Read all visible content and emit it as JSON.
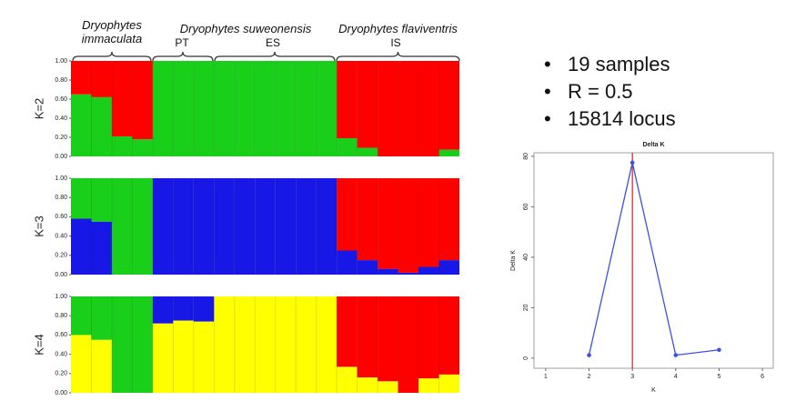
{
  "bullets": [
    "19 samples",
    "R = 0.5",
    "15814 locus"
  ],
  "labels": {
    "species": [
      "Dryophytes immaculata",
      "Dryophytes suweonensis",
      "Dryophytes flaviventris"
    ],
    "populations": [
      "PT",
      "ES",
      "IS"
    ]
  },
  "chart_data": [
    {
      "type": "bar",
      "stacked": true,
      "ylabel": "K=2",
      "categories": [
        null,
        null,
        null,
        null,
        null,
        null,
        null,
        null,
        null,
        null,
        null,
        null,
        null,
        null,
        null,
        null,
        null,
        null,
        null
      ],
      "series": [
        {
          "color": "#19cf19",
          "values": [
            0.65,
            0.62,
            0.21,
            0.18,
            1,
            1,
            1,
            1,
            1,
            1,
            1,
            1,
            1,
            0.19,
            0.09,
            0,
            0,
            0,
            0.07
          ]
        },
        {
          "color": "#ff0000",
          "values": [
            0.35,
            0.38,
            0.79,
            0.82,
            0,
            0,
            0,
            0,
            0,
            0,
            0,
            0,
            0,
            0.81,
            0.91,
            1,
            1,
            1,
            0.93
          ]
        }
      ],
      "ylim": [
        0,
        1
      ],
      "yticks": [
        {
          "value": 0,
          "label": "0.00"
        },
        {
          "value": 0.2,
          "label": "0.20"
        },
        {
          "value": 0.4,
          "label": "0.40"
        },
        {
          "value": 0.6,
          "label": "0.60"
        },
        {
          "value": 0.8,
          "label": "0.80"
        },
        {
          "value": 1,
          "label": "1.00"
        }
      ]
    },
    {
      "type": "bar",
      "stacked": true,
      "ylabel": "K=3",
      "categories": [
        null,
        null,
        null,
        null,
        null,
        null,
        null,
        null,
        null,
        null,
        null,
        null,
        null,
        null,
        null,
        null,
        null,
        null,
        null
      ],
      "series": [
        {
          "color": "#1717e6",
          "values": [
            0.58,
            0.55,
            0,
            0,
            1,
            1,
            1,
            1,
            1,
            1,
            1,
            1,
            1,
            0.25,
            0.15,
            0.06,
            0.02,
            0.08,
            0.15
          ]
        },
        {
          "color": "#19cf19",
          "values": [
            0.42,
            0.45,
            1,
            1,
            0,
            0,
            0,
            0,
            0,
            0,
            0,
            0,
            0,
            0,
            0,
            0,
            0,
            0,
            0
          ]
        },
        {
          "color": "#ff0000",
          "values": [
            0,
            0,
            0,
            0,
            0,
            0,
            0,
            0,
            0,
            0,
            0,
            0,
            0,
            0.75,
            0.85,
            0.94,
            0.98,
            0.92,
            0.85
          ]
        }
      ],
      "ylim": [
        0,
        1
      ],
      "yticks": [
        {
          "value": 0,
          "label": "0.00"
        },
        {
          "value": 0.2,
          "label": "0.20"
        },
        {
          "value": 0.4,
          "label": "0.40"
        },
        {
          "value": 0.6,
          "label": "0.60"
        },
        {
          "value": 0.8,
          "label": "0.80"
        },
        {
          "value": 1,
          "label": "1.00"
        }
      ]
    },
    {
      "type": "bar",
      "stacked": true,
      "ylabel": "K=4",
      "categories": [
        null,
        null,
        null,
        null,
        null,
        null,
        null,
        null,
        null,
        null,
        null,
        null,
        null,
        null,
        null,
        null,
        null,
        null,
        null
      ],
      "series": [
        {
          "color": "#ffff00",
          "values": [
            0.6,
            0.55,
            0,
            0,
            0.72,
            0.75,
            0.74,
            1,
            1,
            1,
            1,
            1,
            1,
            0.27,
            0.16,
            0.12,
            0,
            0.15,
            0.19
          ]
        },
        {
          "color": "#19cf19",
          "values": [
            0.4,
            0.45,
            1,
            1,
            0,
            0,
            0,
            0,
            0,
            0,
            0,
            0,
            0,
            0,
            0,
            0,
            0,
            0,
            0
          ]
        },
        {
          "color": "#1717e6",
          "values": [
            0,
            0,
            0,
            0,
            0.28,
            0.25,
            0.26,
            0,
            0,
            0,
            0,
            0,
            0,
            0,
            0,
            0,
            0,
            0,
            0
          ]
        },
        {
          "color": "#ff0000",
          "values": [
            0,
            0,
            0,
            0,
            0,
            0,
            0,
            0,
            0,
            0,
            0,
            0,
            0,
            0.73,
            0.84,
            0.88,
            1,
            0.85,
            0.81
          ]
        }
      ],
      "ylim": [
        0,
        1
      ],
      "yticks": [
        {
          "value": 0,
          "label": "0.00"
        },
        {
          "value": 0.2,
          "label": "0.20"
        },
        {
          "value": 0.4,
          "label": "0.40"
        },
        {
          "value": 0.6,
          "label": "0.60"
        },
        {
          "value": 0.8,
          "label": "0.80"
        },
        {
          "value": 1,
          "label": "1.00"
        }
      ]
    },
    {
      "type": "line",
      "title": "Delta K",
      "xlabel": "K",
      "ylabel": "Delta K",
      "x": [
        2,
        3,
        4,
        5
      ],
      "series": [
        {
          "color": "#3c52e0",
          "values": [
            1.2,
            77.5,
            1.2,
            3.3
          ]
        }
      ],
      "vline": 3,
      "vline_color": "#cc2222",
      "xlim": [
        0.73,
        6.25
      ],
      "xticks": [
        1,
        2,
        3,
        4,
        5,
        6
      ],
      "ylim": [
        -4,
        81.4
      ],
      "yticks": [
        0,
        20,
        40,
        60,
        80
      ]
    }
  ]
}
